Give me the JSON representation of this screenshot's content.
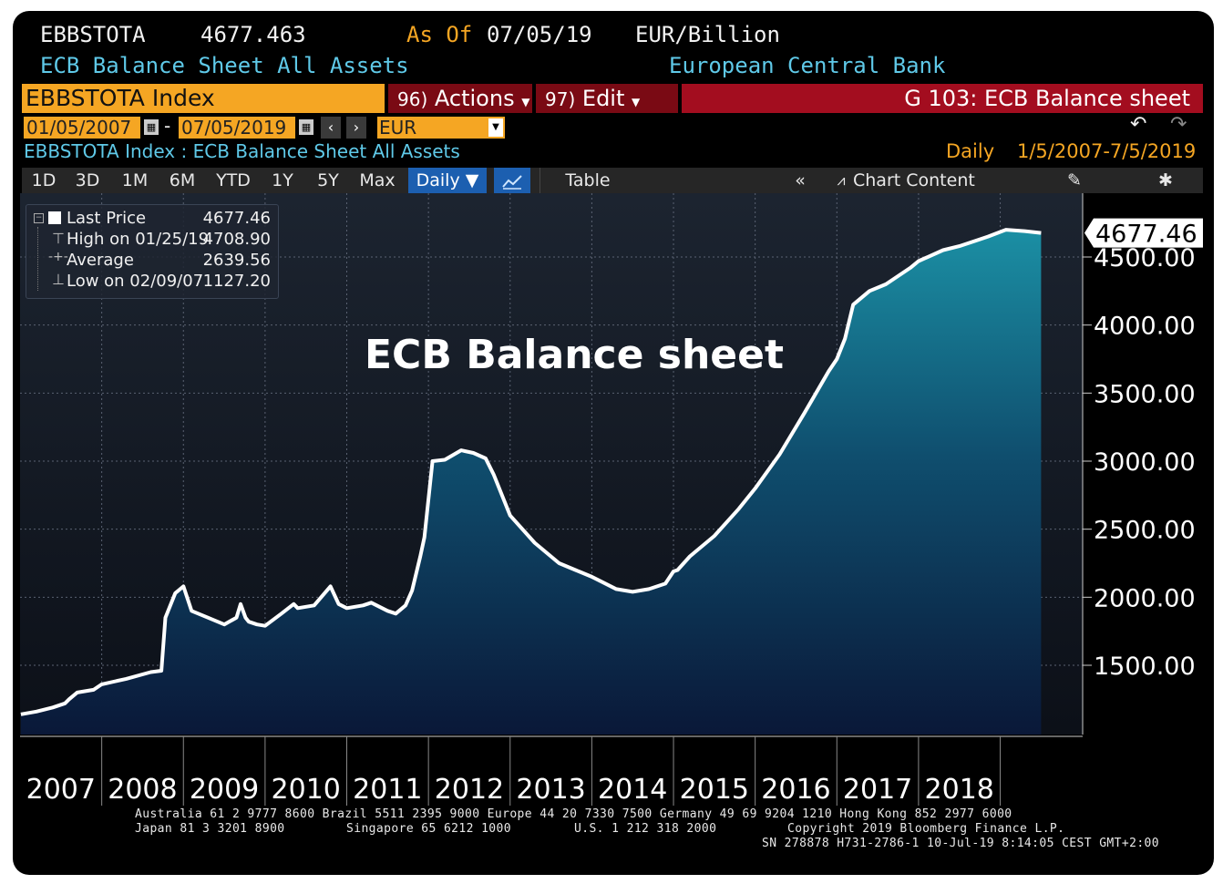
{
  "header": {
    "ticker": "EBBSTOTA",
    "last_value": "4677.463",
    "as_of_label": "As Of",
    "as_of_date": "07/05/19",
    "units": "EUR/Billion",
    "description": "ECB Balance Sheet All Assets",
    "source": "European Central Bank"
  },
  "command_bar": {
    "security": "EBBSTOTA Index",
    "actions_num": "96)",
    "actions_label": "Actions",
    "edit_num": "97)",
    "edit_label": "Edit",
    "page_title": "G 103: ECB Balance sheet"
  },
  "date_range": {
    "start": "01/05/2007",
    "separator": "-",
    "end": "07/05/2019",
    "currency": "EUR"
  },
  "subtitle": {
    "left": "EBBSTOTA Index : ECB Balance Sheet All Assets",
    "frequency": "Daily",
    "range": "1/5/2007-7/5/2019"
  },
  "toolbar": {
    "periods": [
      "1D",
      "3D",
      "1M",
      "6M",
      "YTD",
      "1Y",
      "5Y",
      "Max"
    ],
    "frequency": "Daily ▼",
    "table": "Table",
    "chart_content": "Chart Content"
  },
  "legend": {
    "rows": [
      {
        "label": "Last Price",
        "value": "4677.46"
      },
      {
        "label": "High on 01/25/19",
        "value": "4708.90"
      },
      {
        "label": "Average",
        "value": "2639.56"
      },
      {
        "label": "Low on 02/09/07",
        "value": "1127.20"
      }
    ]
  },
  "chart_data": {
    "type": "area",
    "title": "ECB Balance sheet",
    "last_price_label": "4677.46",
    "ylim": [
      1000,
      4750
    ],
    "yticks": [
      1500,
      2000,
      2500,
      3000,
      3500,
      4000,
      4500
    ],
    "ytick_labels": [
      "1500.00",
      "2000.00",
      "2500.00",
      "3000.00",
      "3500.00",
      "4000.00",
      "4500.00"
    ],
    "xlim": [
      2007.0,
      2019.7
    ],
    "xtick_labels": [
      "2007",
      "2008",
      "2009",
      "2010",
      "2011",
      "2012",
      "2013",
      "2014",
      "2015",
      "2016",
      "2017",
      "2018"
    ],
    "grid": true,
    "x": [
      2007.01,
      2007.2,
      2007.4,
      2007.55,
      2007.6,
      2007.62,
      2007.7,
      2007.9,
      2008.0,
      2008.3,
      2008.6,
      2008.73,
      2008.78,
      2008.9,
      2009.0,
      2009.1,
      2009.3,
      2009.5,
      2009.65,
      2009.7,
      2009.76,
      2009.8,
      2009.9,
      2010.0,
      2010.2,
      2010.35,
      2010.4,
      2010.6,
      2010.8,
      2010.9,
      2011.0,
      2011.2,
      2011.3,
      2011.5,
      2011.6,
      2011.72,
      2011.8,
      2011.9,
      2011.95,
      2012.05,
      2012.2,
      2012.4,
      2012.55,
      2012.7,
      2012.8,
      2013.0,
      2013.3,
      2013.6,
      2013.8,
      2014.0,
      2014.3,
      2014.5,
      2014.7,
      2014.9,
      2015.0,
      2015.05,
      2015.2,
      2015.5,
      2015.8,
      2016.0,
      2016.3,
      2016.6,
      2016.9,
      2017.0,
      2017.1,
      2017.2,
      2017.4,
      2017.6,
      2017.9,
      2018.0,
      2018.3,
      2018.5,
      2018.7,
      2018.85,
      2019.07,
      2019.3,
      2019.5
    ],
    "values": [
      1140,
      1160,
      1190,
      1220,
      1250,
      1260,
      1300,
      1320,
      1360,
      1400,
      1450,
      1460,
      1850,
      2030,
      2080,
      1900,
      1850,
      1800,
      1850,
      1950,
      1850,
      1820,
      1800,
      1790,
      1880,
      1950,
      1920,
      1940,
      2080,
      1950,
      1920,
      1940,
      1960,
      1900,
      1880,
      1940,
      2050,
      2300,
      2440,
      3000,
      3010,
      3080,
      3060,
      3020,
      2900,
      2600,
      2400,
      2250,
      2200,
      2150,
      2060,
      2040,
      2060,
      2100,
      2190,
      2200,
      2300,
      2450,
      2650,
      2800,
      3050,
      3350,
      3660,
      3750,
      3900,
      4150,
      4250,
      4300,
      4420,
      4470,
      4550,
      4580,
      4620,
      4650,
      4700,
      4690,
      4677
    ]
  },
  "footer": {
    "line1": "Australia 61 2 9777 8600 Brazil 5511 2395 9000 Europe 44 20 7330 7500 Germany 49 69 9204 1210 Hong Kong 852 2977 6000",
    "line2a": "Japan 81 3 3201 8900",
    "line2b": "Singapore 65 6212 1000",
    "line2c": "U.S. 1 212 318 2000",
    "line2d": "Copyright 2019 Bloomberg Finance L.P.",
    "line3": "SN 278878 H731-2786-1 10-Jul-19  8:14:05 CEST GMT+2:00"
  }
}
